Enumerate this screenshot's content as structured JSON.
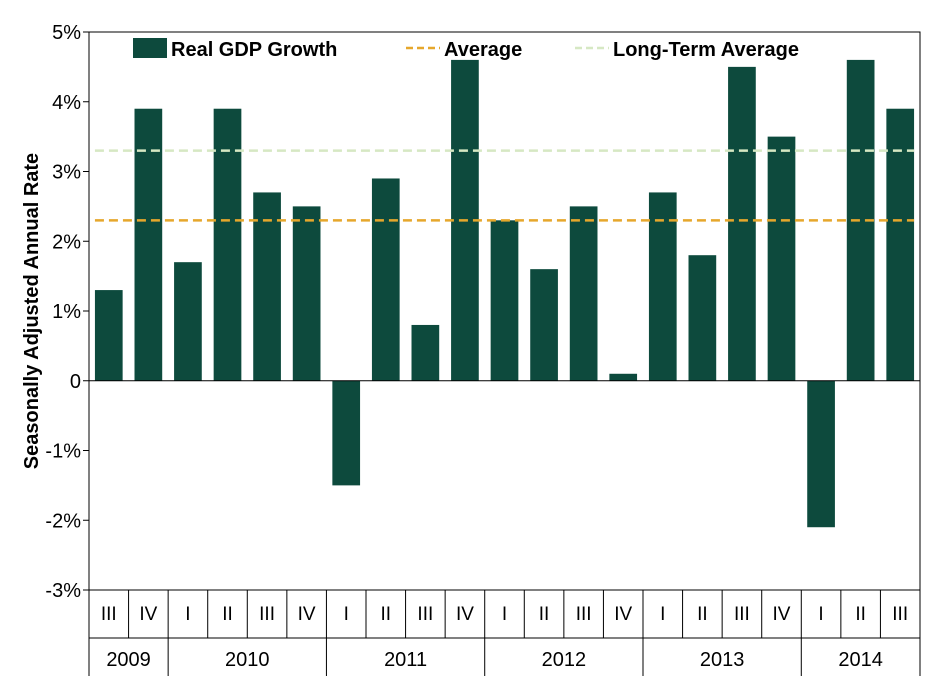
{
  "chart_data": {
    "type": "bar",
    "ylabel": "Seasonally Adjusted Annual Rate",
    "xlabel": "",
    "ylim": [
      -3,
      5
    ],
    "yticks": [
      "-3%",
      "-2%",
      "-1%",
      "0",
      "1%",
      "2%",
      "3%",
      "4%",
      "5%"
    ],
    "categories": [
      "III",
      "IV",
      "I",
      "II",
      "III",
      "IV",
      "I",
      "II",
      "III",
      "IV",
      "I",
      "II",
      "III",
      "IV",
      "I",
      "II",
      "III",
      "IV",
      "I",
      "II",
      "III"
    ],
    "years": [
      {
        "label": "2009",
        "count": 2
      },
      {
        "label": "2010",
        "count": 4
      },
      {
        "label": "2011",
        "count": 4
      },
      {
        "label": "2012",
        "count": 4
      },
      {
        "label": "2013",
        "count": 4
      },
      {
        "label": "2014",
        "count": 3
      }
    ],
    "series": [
      {
        "name": "Real GDP Growth",
        "color": "#0d4a3d",
        "values": [
          1.3,
          3.9,
          1.7,
          3.9,
          2.7,
          2.5,
          -1.5,
          2.9,
          0.8,
          4.6,
          2.3,
          1.6,
          2.5,
          0.1,
          2.7,
          1.8,
          4.5,
          3.5,
          -2.1,
          4.6,
          3.9
        ]
      }
    ],
    "reference_lines": [
      {
        "name": "Average",
        "value": 2.3,
        "color": "#e6a72c",
        "style": "dashed"
      },
      {
        "name": "Long-Term Average",
        "value": 3.3,
        "color": "#d6e8c3",
        "style": "dashed"
      }
    ],
    "legend": "top",
    "grid": false
  }
}
